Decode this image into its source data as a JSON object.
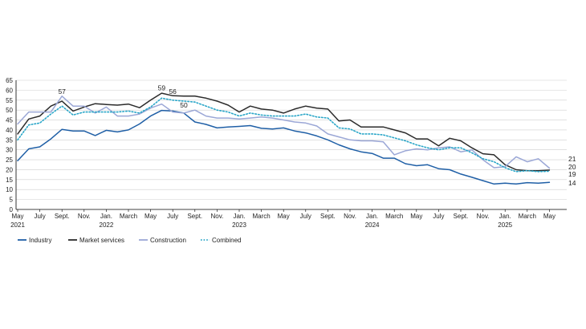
{
  "chart_data": {
    "type": "line",
    "title": "",
    "xlabel": "",
    "ylabel": "",
    "ylim": [
      0,
      65
    ],
    "yticks": [
      0,
      5,
      10,
      15,
      20,
      25,
      30,
      35,
      40,
      45,
      50,
      55,
      60,
      65
    ],
    "grid": "horizontal",
    "legend_position": "bottom",
    "x_start": "2021-05",
    "x_end": "2025-06",
    "x_tick_labels": [
      {
        "month": "2021-05",
        "label": "May",
        "sub": "2021"
      },
      {
        "month": "2021-07",
        "label": "July",
        "sub": ""
      },
      {
        "month": "2021-09",
        "label": "Sept.",
        "sub": ""
      },
      {
        "month": "2021-11",
        "label": "Nov.",
        "sub": ""
      },
      {
        "month": "2022-01",
        "label": "Jan.",
        "sub": "2022"
      },
      {
        "month": "2022-03",
        "label": "March",
        "sub": ""
      },
      {
        "month": "2022-05",
        "label": "May",
        "sub": ""
      },
      {
        "month": "2022-07",
        "label": "July",
        "sub": ""
      },
      {
        "month": "2022-09",
        "label": "Sept.",
        "sub": ""
      },
      {
        "month": "2022-11",
        "label": "Nov.",
        "sub": ""
      },
      {
        "month": "2023-01",
        "label": "Jan.",
        "sub": "2023"
      },
      {
        "month": "2023-03",
        "label": "March",
        "sub": ""
      },
      {
        "month": "2023-05",
        "label": "May",
        "sub": ""
      },
      {
        "month": "2023-07",
        "label": "July",
        "sub": ""
      },
      {
        "month": "2023-09",
        "label": "Sept.",
        "sub": ""
      },
      {
        "month": "2023-11",
        "label": "Nov.",
        "sub": ""
      },
      {
        "month": "2024-01",
        "label": "Jan.",
        "sub": "2024"
      },
      {
        "month": "2024-03",
        "label": "March",
        "sub": ""
      },
      {
        "month": "2024-05",
        "label": "May",
        "sub": ""
      },
      {
        "month": "2024-07",
        "label": "July",
        "sub": ""
      },
      {
        "month": "2024-09",
        "label": "Sept.",
        "sub": ""
      },
      {
        "month": "2024-11",
        "label": "Nov.",
        "sub": ""
      },
      {
        "month": "2025-01",
        "label": "Jan.",
        "sub": "2025"
      },
      {
        "month": "2025-03",
        "label": "March",
        "sub": ""
      },
      {
        "month": "2025-05",
        "label": "May",
        "sub": ""
      }
    ],
    "series": [
      {
        "name": "Industry",
        "color": "#1f5fa6",
        "style": "solid",
        "values": [
          24.5,
          30.5,
          31.5,
          35.5,
          40.3,
          39.5,
          39.5,
          37.2,
          39.8,
          39.0,
          40.0,
          43.0,
          47.0,
          49.8,
          49.5,
          48.5,
          44.0,
          42.8,
          41.0,
          41.5,
          41.8,
          42.2,
          40.8,
          40.5,
          41.0,
          39.5,
          38.5,
          37.0,
          35.0,
          32.5,
          30.5,
          29.0,
          28.2,
          25.8,
          25.8,
          23.0,
          22.0,
          22.5,
          20.5,
          20.0,
          17.8,
          16.2,
          14.5,
          12.8,
          13.2,
          12.8,
          13.5,
          13.2,
          13.6
        ]
      },
      {
        "name": "Market services",
        "color": "#2b2b2b",
        "style": "solid",
        "values": [
          38.0,
          45.5,
          47.0,
          52.0,
          54.5,
          49.5,
          51.5,
          53.2,
          52.8,
          52.5,
          53.0,
          51.2,
          55.0,
          58.5,
          57.2,
          57.0,
          57.0,
          56.0,
          54.5,
          52.5,
          49.0,
          52.0,
          50.5,
          50.0,
          48.5,
          50.5,
          52.0,
          51.0,
          50.5,
          44.5,
          45.0,
          41.5,
          41.5,
          41.5,
          40.0,
          38.5,
          35.5,
          35.5,
          32.0,
          35.8,
          34.5,
          31.0,
          28.0,
          27.5,
          22.5,
          20.0,
          19.5,
          19.5,
          19.8
        ]
      },
      {
        "name": "Construction",
        "color": "#9ba7d6",
        "style": "solid",
        "values": [
          43.0,
          49.0,
          49.0,
          49.0,
          57.0,
          52.0,
          52.0,
          48.5,
          51.5,
          47.0,
          47.0,
          48.0,
          51.0,
          53.0,
          49.0,
          48.5,
          50.0,
          47.0,
          46.0,
          46.0,
          45.5,
          46.0,
          46.5,
          46.0,
          45.0,
          44.0,
          43.5,
          42.0,
          38.0,
          36.5,
          35.0,
          34.5,
          34.5,
          34.0,
          27.5,
          29.5,
          30.5,
          30.0,
          31.0,
          31.5,
          29.0,
          30.0,
          25.0,
          21.0,
          21.5,
          26.5,
          24.0,
          25.5,
          20.8
        ]
      },
      {
        "name": "Combined",
        "color": "#2aa6c8",
        "style": "dotted",
        "values": [
          35.0,
          42.5,
          43.5,
          48.0,
          52.0,
          47.5,
          49.0,
          49.0,
          49.0,
          49.0,
          49.5,
          48.5,
          51.5,
          56.0,
          55.0,
          54.5,
          54.0,
          52.0,
          50.0,
          49.0,
          47.0,
          48.5,
          47.5,
          47.0,
          47.0,
          47.0,
          48.0,
          46.5,
          46.0,
          41.0,
          40.5,
          38.0,
          38.0,
          37.5,
          36.0,
          34.5,
          32.5,
          31.0,
          30.0,
          31.0,
          31.0,
          28.5,
          25.5,
          24.0,
          21.0,
          19.0,
          19.5,
          19.0,
          19.2
        ]
      }
    ],
    "annotations": [
      {
        "text": "57",
        "month": "2021-09",
        "y": 57
      },
      {
        "text": "59",
        "month": "2022-06",
        "y": 58.8
      },
      {
        "text": "56",
        "month": "2022-07",
        "y": 57
      },
      {
        "text": "50",
        "month": "2022-08",
        "y": 50
      }
    ],
    "end_labels": [
      {
        "text": "21",
        "y": 21
      },
      {
        "text": "20",
        "y": 20
      },
      {
        "text": "19",
        "y": 19
      },
      {
        "text": "14",
        "y": 14
      }
    ]
  }
}
